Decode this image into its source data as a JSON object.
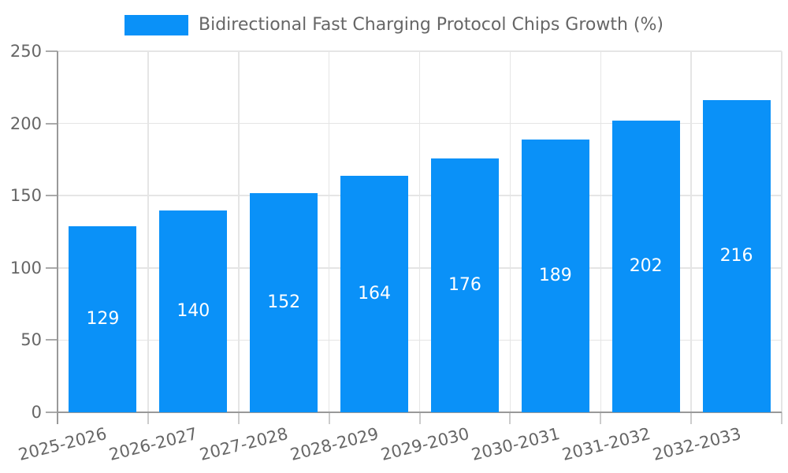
{
  "legend": {
    "label": "Bidirectional Fast Charging Protocol Chips Growth (%)",
    "swatch_color": "#0a91f8"
  },
  "chart_data": {
    "type": "bar",
    "title": "Bidirectional Fast Charging Protocol Chips Growth (%)",
    "categories": [
      "2025-2026",
      "2026-2027",
      "2027-2028",
      "2028-2029",
      "2029-2030",
      "2030-2031",
      "2031-2032",
      "2032-2033"
    ],
    "values": [
      129,
      140,
      152,
      164,
      176,
      189,
      202,
      216
    ],
    "bar_color": "#0a91f8",
    "value_label_color": "#ffffff",
    "xlabel": "",
    "ylabel": "",
    "ylim": [
      0,
      250
    ],
    "yticks": [
      0,
      50,
      100,
      150,
      200,
      250
    ],
    "grid": true,
    "legend_position": "top-center",
    "x_tick_rotation_deg": -14
  },
  "style": {
    "axis_color": "#999999",
    "grid_color": "#e5e5e5",
    "tick_color_y": "#aaaaaa",
    "tick_color_x": "#cccccc",
    "text_color": "#666666",
    "background": "#ffffff"
  }
}
